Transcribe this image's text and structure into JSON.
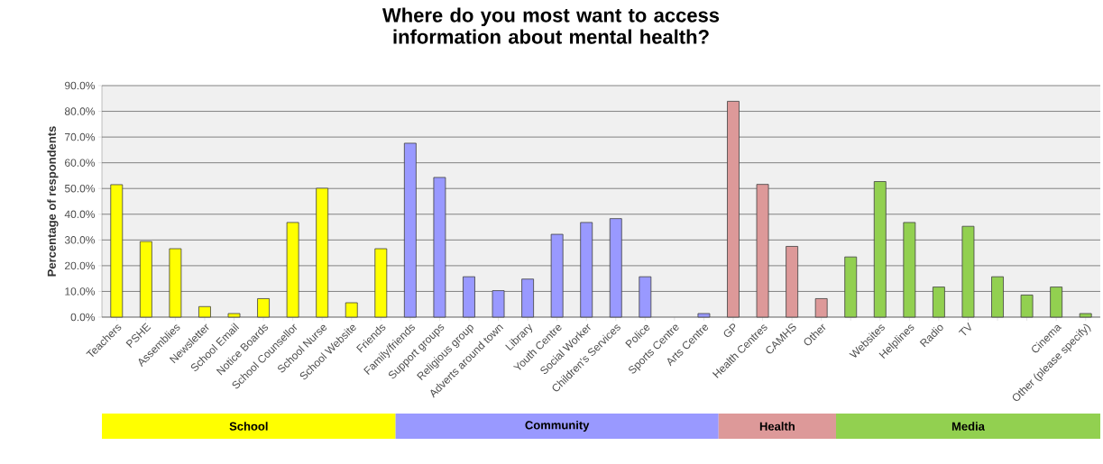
{
  "chart_data": {
    "type": "bar",
    "title": "Where do you most want to access information about mental health?",
    "ylabel": "Percentage of respondents",
    "categories": [
      "Teachers",
      "PSHE",
      "Assemblies",
      "Newsletter",
      "School Email",
      "Notice Boards",
      "School Counsellor",
      "School Nurse",
      "School Website",
      "Friends",
      "Family/friends",
      "Support groups",
      "Religious group",
      "Adverts around town",
      "Library",
      "Youth Centre",
      "Social Worker",
      "Children's Services",
      "Police",
      "Sports Centre",
      "Arts Centre",
      "GP",
      "Health Centres",
      "CAMHS",
      "Other",
      null,
      "Websites",
      "Helplines",
      "Radio",
      "TV",
      null,
      null,
      "Cinema",
      "Other (please specify)"
    ],
    "series": [
      {
        "name": "School",
        "color": "#ffff00",
        "values": [
          51.5,
          29.4,
          26.6,
          4.1,
          1.4,
          7.2,
          36.8,
          50.1,
          5.6,
          26.6,
          null,
          null,
          null,
          null,
          null,
          null,
          null,
          null,
          null,
          null,
          null,
          null,
          null,
          null,
          null,
          null,
          null,
          null,
          null,
          null,
          null,
          null,
          null,
          null
        ]
      },
      {
        "name": "Community",
        "color": "#9999ff",
        "values": [
          null,
          null,
          null,
          null,
          null,
          null,
          null,
          null,
          null,
          null,
          67.6,
          54.3,
          15.7,
          10.3,
          14.8,
          32.2,
          36.8,
          38.3,
          15.7,
          null,
          1.4,
          null,
          null,
          null,
          null,
          null,
          null,
          null,
          null,
          null,
          null,
          null,
          null,
          null
        ]
      },
      {
        "name": "Health",
        "color": "#dd9999",
        "values": [
          null,
          null,
          null,
          null,
          null,
          null,
          null,
          null,
          null,
          null,
          null,
          null,
          null,
          null,
          null,
          null,
          null,
          null,
          null,
          null,
          null,
          83.9,
          51.6,
          27.5,
          7.2,
          null,
          null,
          null,
          null,
          null,
          null,
          null,
          null,
          null
        ]
      },
      {
        "name": "Media",
        "color": "#92d050",
        "values": [
          null,
          null,
          null,
          null,
          null,
          null,
          null,
          null,
          null,
          null,
          null,
          null,
          null,
          null,
          null,
          null,
          null,
          null,
          null,
          null,
          null,
          null,
          null,
          null,
          null,
          23.4,
          52.7,
          36.8,
          11.7,
          35.3,
          15.7,
          8.6,
          11.7,
          1.4
        ]
      }
    ],
    "ylim": [
      0,
      90
    ],
    "yticks": [
      {
        "value": 0,
        "label": "0.0%"
      },
      {
        "value": 10,
        "label": "10.0%"
      },
      {
        "value": 20,
        "label": "20.0%"
      },
      {
        "value": 30,
        "label": "30.0%"
      },
      {
        "value": 40,
        "label": "40.0%"
      },
      {
        "value": 50,
        "label": "50.0%"
      },
      {
        "value": 60,
        "label": "60.0%"
      },
      {
        "value": 70,
        "label": "70.0%"
      },
      {
        "value": 80,
        "label": "80.0%"
      },
      {
        "value": 90,
        "label": "90.0%"
      }
    ],
    "grid": "y",
    "legend": "bottom"
  }
}
